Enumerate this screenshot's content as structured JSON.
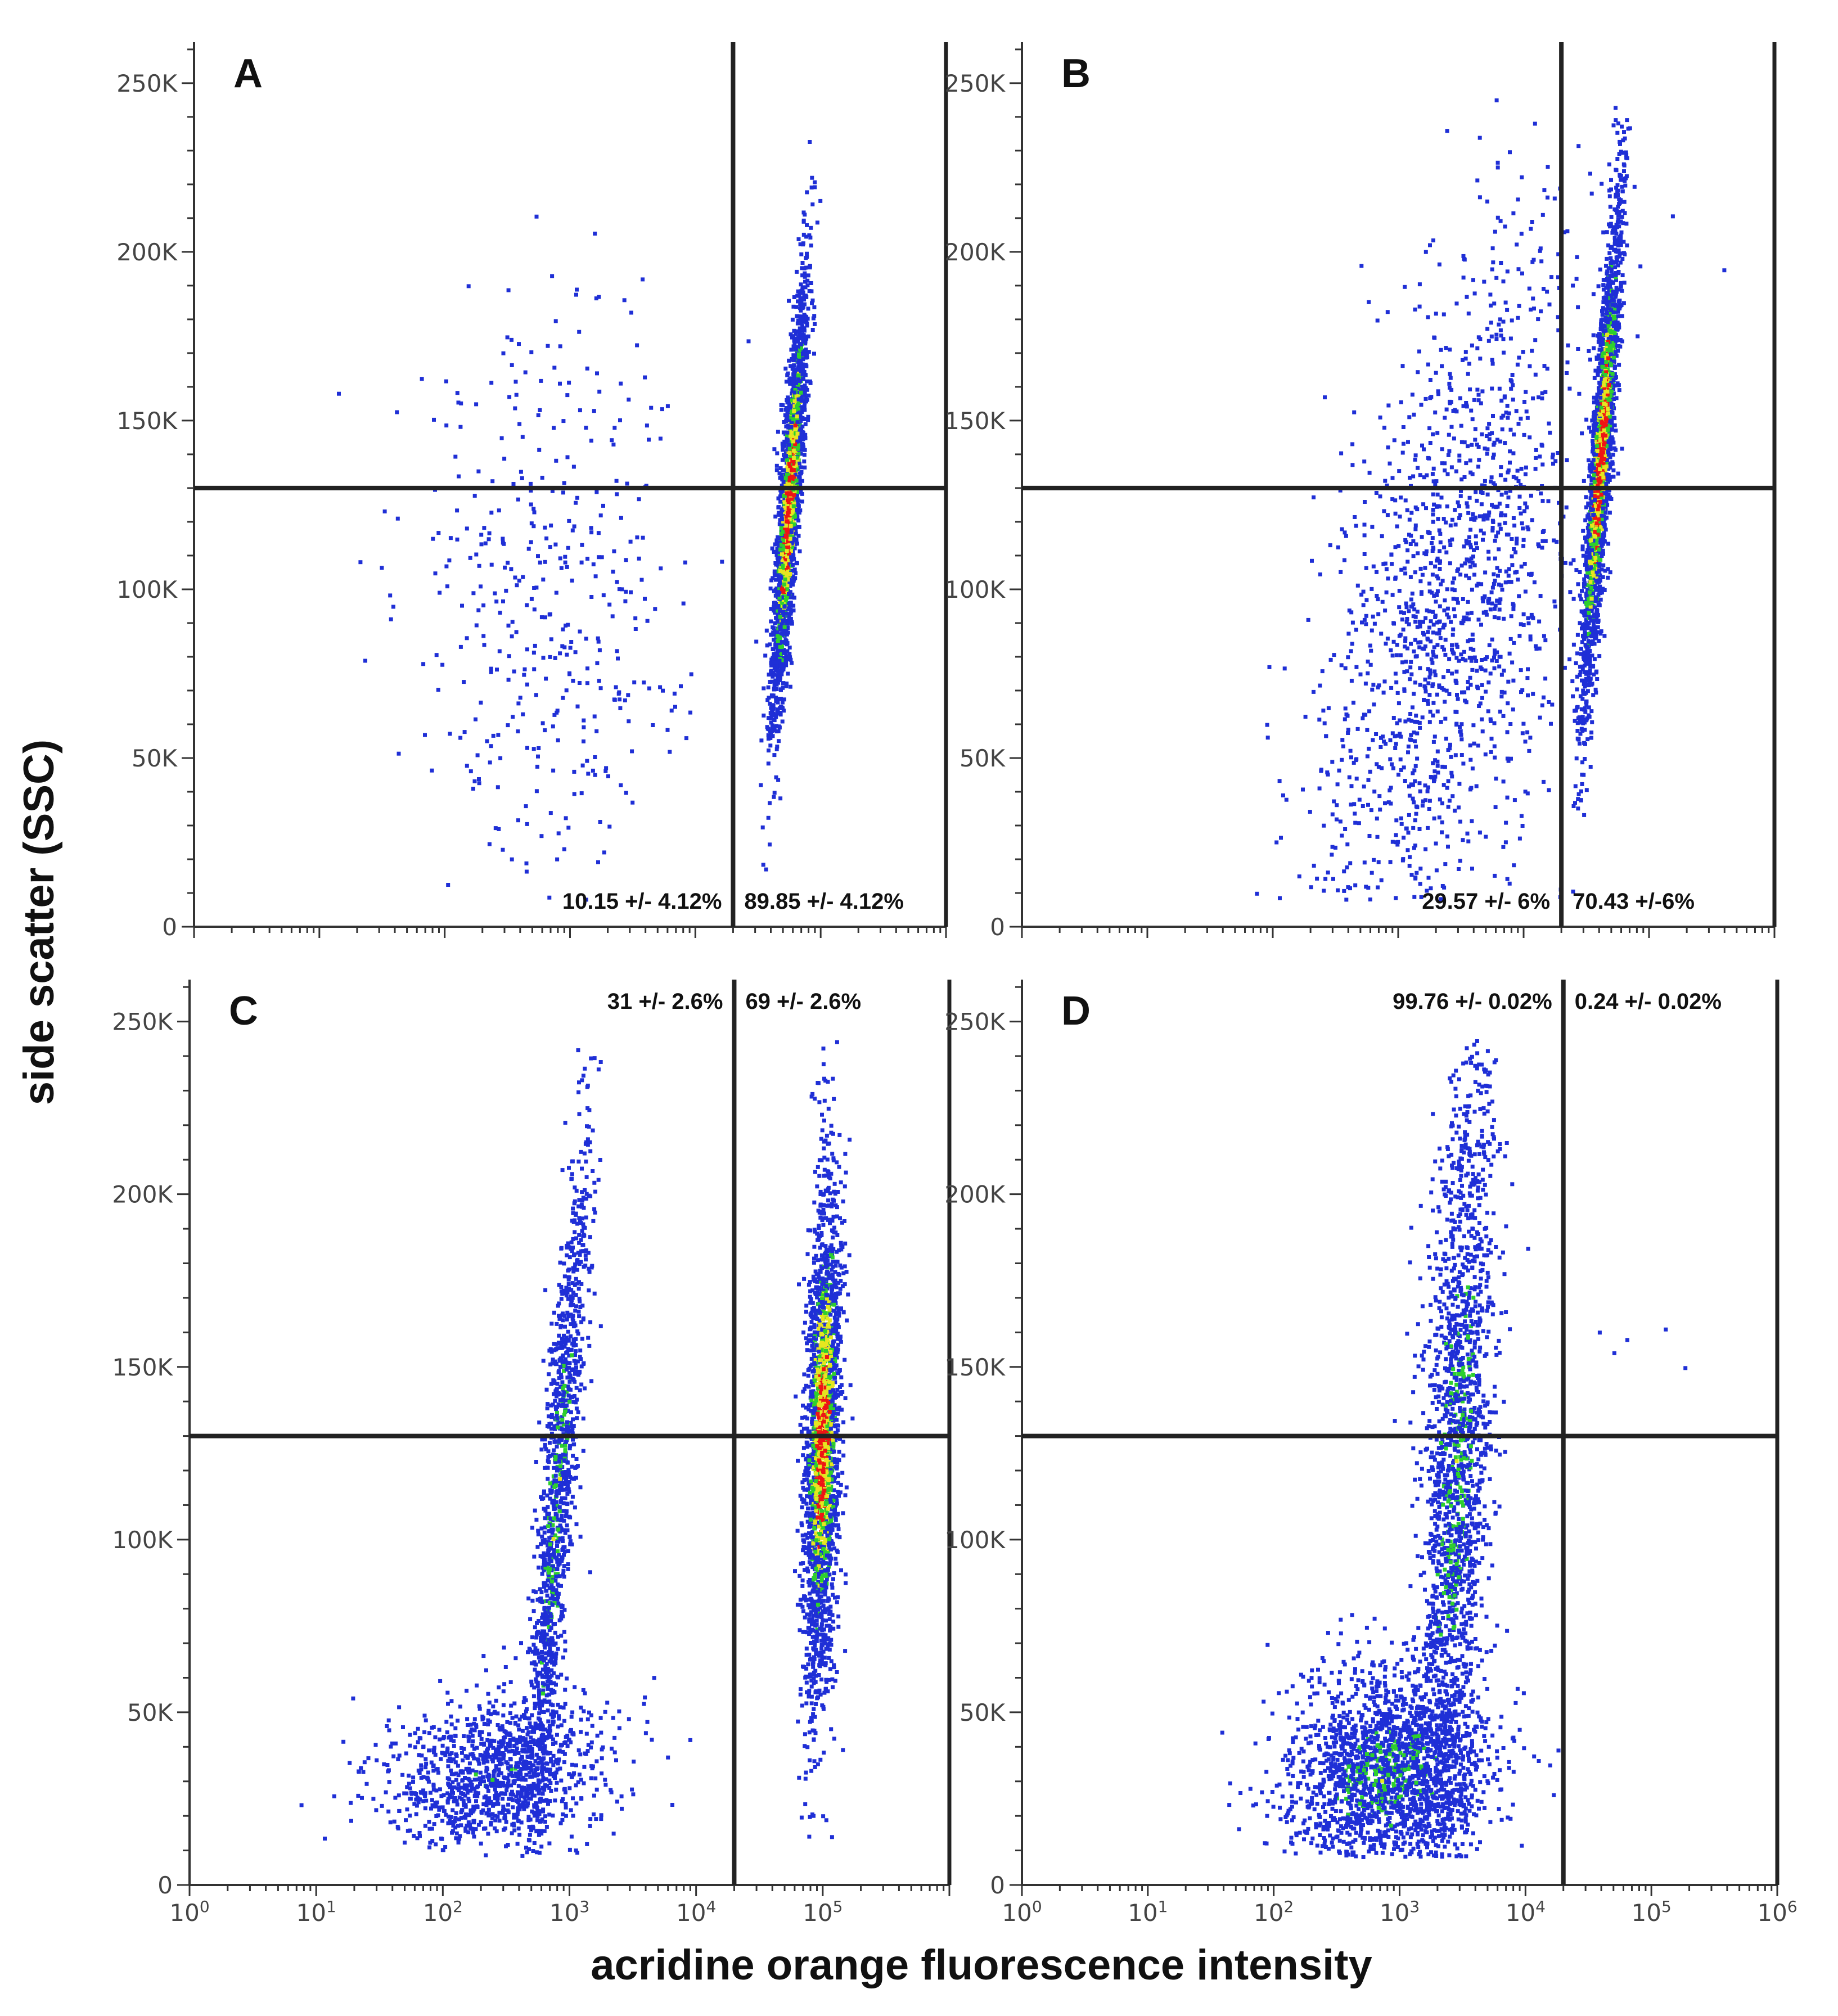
{
  "figure": {
    "ylabel": "side scatter (SSC)",
    "xlabel": "acridine orange fluorescence intensity",
    "colors": {
      "axis": "#333333",
      "gate": "#222222",
      "low": "#1f2fd6",
      "mid_low": "#2ecf2e",
      "mid": "#e6e620",
      "high": "#ee1515"
    }
  },
  "chart_data": [
    {
      "type": "scatter",
      "panel": "A",
      "title": "A",
      "xscale": "log",
      "xlim": [
        1,
        1000000
      ],
      "ylim": [
        0,
        262144
      ],
      "xticks": [
        {
          "base": "10",
          "exp": "0"
        },
        {
          "base": "10",
          "exp": "1"
        },
        {
          "base": "10",
          "exp": "2"
        },
        {
          "base": "10",
          "exp": "3"
        },
        {
          "base": "10",
          "exp": "4"
        },
        {
          "base": "10",
          "exp": "5"
        }
      ],
      "xtick_labels_shown": false,
      "yticks": [
        0,
        50000,
        100000,
        150000,
        200000,
        250000
      ],
      "ytick_labels": [
        "0",
        "50K",
        "100K",
        "150K",
        "200K",
        "250K"
      ],
      "gate_x": 20000,
      "gate_y": 130000,
      "gate_y_extends_left": true,
      "quadrant_labels": [
        {
          "text": "10.15 +/- 4.12%",
          "region": "lower-left"
        },
        {
          "text": "89.85 +/- 4.12%",
          "region": "lower-right"
        }
      ],
      "populations": [
        {
          "name": "sparse",
          "log_x": 2.8,
          "sd_x": 0.55,
          "y": 95000,
          "sd_y": 45000,
          "corr": 0.1,
          "n": 420,
          "density": 0.05
        },
        {
          "name": "dense",
          "log_x": 4.75,
          "sd_x": 0.07,
          "y": 125000,
          "sd_y": 32000,
          "corr": 0.82,
          "n": 2200,
          "density": 0.9
        }
      ]
    },
    {
      "type": "scatter",
      "panel": "B",
      "title": "B",
      "xscale": "log",
      "xlim": [
        1,
        1000000
      ],
      "ylim": [
        0,
        262144
      ],
      "xticks": [
        {
          "base": "10",
          "exp": "0"
        },
        {
          "base": "10",
          "exp": "1"
        },
        {
          "base": "10",
          "exp": "2"
        },
        {
          "base": "10",
          "exp": "3"
        },
        {
          "base": "10",
          "exp": "4"
        },
        {
          "base": "10",
          "exp": "5"
        }
      ],
      "xtick_labels_shown": false,
      "yticks": [
        0,
        50000,
        100000,
        150000,
        200000,
        250000
      ],
      "ytick_labels": [
        "0",
        "50K",
        "100K",
        "150K",
        "200K",
        "250K"
      ],
      "gate_x": 20000,
      "gate_y": 130000,
      "gate_y_extends_left": true,
      "quadrant_labels": [
        {
          "text": "29.57 +/- 6%",
          "region": "lower-left"
        },
        {
          "text": "70.43 +/-6%",
          "region": "lower-right"
        }
      ],
      "populations": [
        {
          "name": "diagonal",
          "log_x": 3.4,
          "sd_x": 0.55,
          "y": 95000,
          "sd_y": 55000,
          "corr": 0.55,
          "n": 1500,
          "density": 0.08
        },
        {
          "name": "dense",
          "log_x": 4.62,
          "sd_x": 0.08,
          "y": 140000,
          "sd_y": 38000,
          "corr": 0.85,
          "n": 2200,
          "density": 0.9
        }
      ]
    },
    {
      "type": "scatter",
      "panel": "C",
      "title": "C",
      "xscale": "log",
      "xlim": [
        1,
        1000000
      ],
      "ylim": [
        0,
        262144
      ],
      "xticks": [
        {
          "base": "10",
          "exp": "0"
        },
        {
          "base": "10",
          "exp": "1"
        },
        {
          "base": "10",
          "exp": "2"
        },
        {
          "base": "10",
          "exp": "3"
        },
        {
          "base": "10",
          "exp": "4"
        },
        {
          "base": "10",
          "exp": "5"
        }
      ],
      "xtick_labels_shown": true,
      "yticks": [
        0,
        50000,
        100000,
        150000,
        200000,
        250000
      ],
      "ytick_labels": [
        "0",
        "50K",
        "100K",
        "150K",
        "200K",
        "250K"
      ],
      "gate_x": 20000,
      "gate_y": 130000,
      "gate_y_extends_left": true,
      "quadrant_labels": [
        {
          "text": "31 +/- 2.6%",
          "region": "upper-left"
        },
        {
          "text": "69 +/- 2.6%",
          "region": "upper-right"
        }
      ],
      "populations": [
        {
          "name": "base-cloud",
          "log_x": 2.4,
          "sd_x": 0.45,
          "y": 32000,
          "sd_y": 12000,
          "corr": 0.2,
          "n": 1100,
          "density": 0.15
        },
        {
          "name": "rising-arm",
          "log_x": 2.9,
          "sd_x": 0.13,
          "y": 110000,
          "sd_y": 55000,
          "corr": 0.85,
          "n": 1300,
          "density": 0.3
        },
        {
          "name": "dense",
          "log_x": 5.0,
          "sd_x": 0.07,
          "y": 130000,
          "sd_y": 38000,
          "corr": 0.3,
          "n": 2300,
          "density": 0.85
        }
      ]
    },
    {
      "type": "scatter",
      "panel": "D",
      "title": "D",
      "xscale": "log",
      "xlim": [
        1,
        1000000
      ],
      "ylim": [
        0,
        262144
      ],
      "xticks": [
        {
          "base": "10",
          "exp": "0"
        },
        {
          "base": "10",
          "exp": "1"
        },
        {
          "base": "10",
          "exp": "2"
        },
        {
          "base": "10",
          "exp": "3"
        },
        {
          "base": "10",
          "exp": "4"
        },
        {
          "base": "10",
          "exp": "5"
        },
        {
          "base": "10",
          "exp": "6"
        }
      ],
      "xtick_labels_shown": true,
      "yticks": [
        0,
        50000,
        100000,
        150000,
        200000,
        250000
      ],
      "ytick_labels": [
        "0",
        "50K",
        "100K",
        "150K",
        "200K",
        "250K"
      ],
      "gate_x": 20000,
      "gate_y": 130000,
      "gate_y_extends_left": true,
      "quadrant_labels": [
        {
          "text": "99.76 +/- 0.02%",
          "region": "upper-left"
        },
        {
          "text": "0.24 +/- 0.02%",
          "region": "upper-right"
        }
      ],
      "populations": [
        {
          "name": "base-cloud",
          "log_x": 2.9,
          "sd_x": 0.4,
          "y": 32000,
          "sd_y": 15000,
          "corr": 0.1,
          "n": 2000,
          "density": 0.3
        },
        {
          "name": "column",
          "log_x": 3.45,
          "sd_x": 0.15,
          "y": 120000,
          "sd_y": 60000,
          "corr": 0.45,
          "n": 1900,
          "density": 0.3
        },
        {
          "name": "outliers",
          "log_x": 4.9,
          "sd_x": 0.35,
          "y": 150000,
          "sd_y": 10000,
          "corr": 0.0,
          "n": 5,
          "density": 0.0
        }
      ]
    }
  ]
}
